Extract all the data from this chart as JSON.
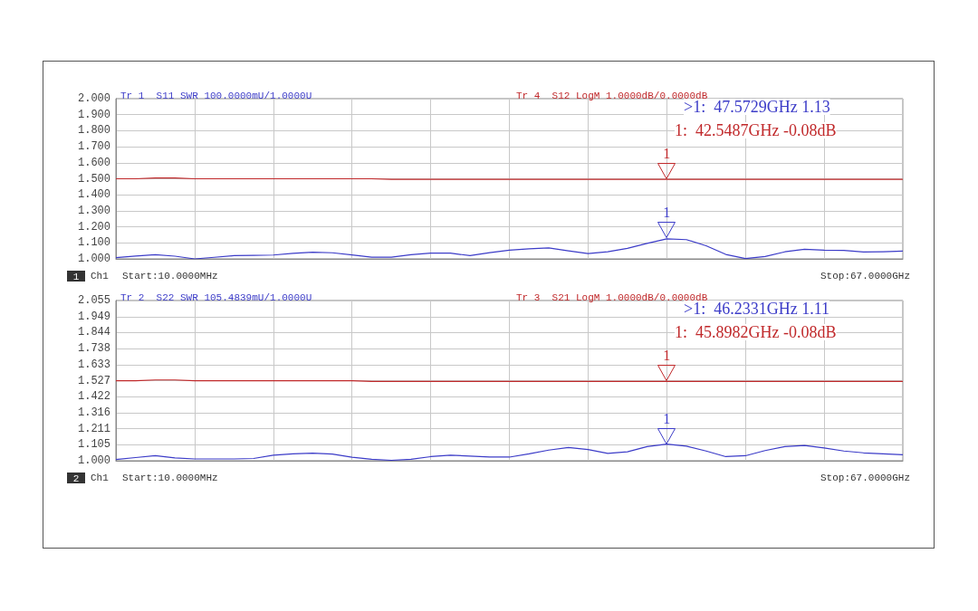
{
  "chart_data": [
    {
      "type": "line",
      "title": "Tr 1  S11 SWR 100.0000mU/1.0000U",
      "subtitle": "Tr 4  S12 LogM 1.0000dB/0.0000dB",
      "categories": [
        null,
        null,
        null,
        null,
        null,
        null,
        null,
        null,
        null,
        null,
        null,
        null,
        null,
        null,
        null,
        null,
        null,
        null,
        null,
        null,
        null,
        null,
        null,
        null,
        null,
        null,
        null,
        null,
        null,
        null,
        null,
        null,
        null,
        null,
        null,
        null,
        null,
        null,
        null,
        null,
        null
      ],
      "ylim": [
        1,
        2
      ],
      "yticks": [
        {
          "value": 1,
          "label": "1.000"
        },
        {
          "value": 1.1,
          "label": "1.100"
        },
        {
          "value": 1.2,
          "label": "1.200"
        },
        {
          "value": 1.3,
          "label": "1.300"
        },
        {
          "value": 1.4,
          "label": "1.400"
        },
        {
          "value": 1.5,
          "label": "1.500"
        },
        {
          "value": 1.6,
          "label": "1.600"
        },
        {
          "value": 1.7,
          "label": "1.700"
        },
        {
          "value": 1.8,
          "label": "1.800"
        },
        {
          "value": 1.9,
          "label": "1.900"
        },
        {
          "value": 2,
          "label": "2.000"
        }
      ],
      "tick_labels": "y",
      "grid": true,
      "marker": "none",
      "line_style": "solid",
      "series": [
        {
          "color": "#3c3cc8",
          "values": [
            1.008,
            1.018,
            1.026,
            1.017,
            1.0,
            1.01,
            1.02,
            1.022,
            1.024,
            1.035,
            1.042,
            1.038,
            1.025,
            1.011,
            1.011,
            1.026,
            1.036,
            1.036,
            1.02,
            1.039,
            1.054,
            1.063,
            1.068,
            1.05,
            1.033,
            1.044,
            1.066,
            1.097,
            1.125,
            1.12,
            1.082,
            1.028,
            1.002,
            1.015,
            1.044,
            1.06,
            1.054,
            1.053,
            1.043,
            1.045,
            1.049
          ]
        },
        {
          "color": "#c0282a",
          "values": [
            1.5,
            1.5,
            1.505,
            1.505,
            1.5,
            1.5,
            1.5,
            1.5,
            1.5,
            1.5,
            1.5,
            1.5,
            1.5,
            1.5,
            1.497,
            1.497,
            1.497,
            1.497,
            1.497,
            1.497,
            1.497,
            1.497,
            1.497,
            1.497,
            1.497,
            1.497,
            1.497,
            1.497,
            1.497,
            1.497,
            1.497,
            1.497,
            1.497,
            1.497,
            1.497,
            1.497,
            1.497,
            1.497,
            1.497,
            1.497,
            1.497
          ]
        }
      ],
      "annotations": [
        ">1:  47.5729GHz 1.13",
        "1:  42.5487GHz -0.08dB",
        "1",
        "Ch1",
        "Start:10.0000MHz",
        "Stop:67.0000GHz",
        {
          "text": "1",
          "y": 1.13
        },
        {
          "text": "1",
          "y": 1.497
        }
      ]
    },
    {
      "type": "line",
      "title": "Tr 2  S22 SWR 105.4839mU/1.0000U",
      "subtitle": "Tr 3  S21 LogM 1.0000dB/0.0000dB",
      "categories": [
        null,
        null,
        null,
        null,
        null,
        null,
        null,
        null,
        null,
        null,
        null,
        null,
        null,
        null,
        null,
        null,
        null,
        null,
        null,
        null,
        null,
        null,
        null,
        null,
        null,
        null,
        null,
        null,
        null,
        null,
        null,
        null,
        null,
        null,
        null,
        null,
        null,
        null,
        null,
        null,
        null
      ],
      "ylim": [
        1,
        2.055
      ],
      "yticks": [
        {
          "value": 1,
          "label": "1.000"
        },
        1.105,
        1.211,
        1.316,
        1.422,
        1.527,
        1.633,
        1.738,
        1.844,
        1.949,
        2.055
      ],
      "tick_labels": "y",
      "grid": true,
      "marker": "none",
      "line_style": "solid",
      "series": [
        {
          "color": "#3c3cc8",
          "values": [
            1.008,
            1.021,
            1.033,
            1.019,
            1.012,
            1.012,
            1.012,
            1.015,
            1.037,
            1.046,
            1.05,
            1.044,
            1.023,
            1.01,
            1.003,
            1.01,
            1.027,
            1.036,
            1.031,
            1.024,
            1.024,
            1.045,
            1.07,
            1.087,
            1.074,
            1.048,
            1.059,
            1.093,
            1.11,
            1.096,
            1.064,
            1.027,
            1.033,
            1.067,
            1.093,
            1.101,
            1.084,
            1.064,
            1.052,
            1.046,
            1.04
          ]
        },
        {
          "color": "#c0282a",
          "values": [
            1.527,
            1.527,
            1.532,
            1.532,
            1.527,
            1.527,
            1.527,
            1.527,
            1.527,
            1.527,
            1.527,
            1.527,
            1.527,
            1.522,
            1.522,
            1.522,
            1.522,
            1.522,
            1.522,
            1.522,
            1.522,
            1.522,
            1.522,
            1.522,
            1.522,
            1.522,
            1.522,
            1.522,
            1.522,
            1.522,
            1.522,
            1.522,
            1.522,
            1.522,
            1.522,
            1.522,
            1.522,
            1.522,
            1.522,
            1.522,
            1.522
          ]
        }
      ],
      "annotations": [
        ">1:  46.2331GHz 1.11",
        "1:  45.8982GHz -0.08dB",
        "2",
        "Ch1",
        "Start:10.0000MHz",
        "Stop:67.0000GHz",
        {
          "text": "1",
          "y": 1.11
        },
        {
          "text": "1",
          "y": 1.522
        }
      ]
    }
  ]
}
